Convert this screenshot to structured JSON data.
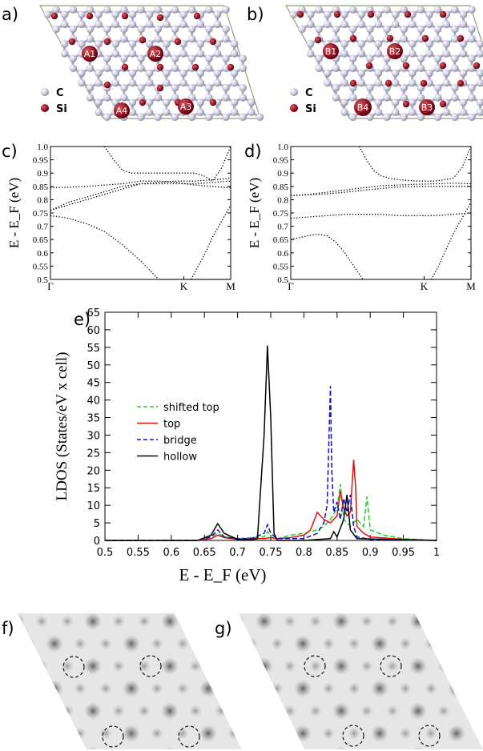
{
  "panels": {
    "a": {
      "letter": "a)",
      "labels": [
        "A1",
        "A2",
        "A4",
        "A3"
      ],
      "legend_c": "C",
      "legend_si": "Si"
    },
    "b": {
      "letter": "b)",
      "labels": [
        "B1",
        "B2",
        "B4",
        "B3"
      ],
      "legend_c": "C",
      "legend_si": "Si"
    },
    "c": {
      "letter": "c)"
    },
    "d": {
      "letter": "d)"
    },
    "e": {
      "letter": "e)"
    },
    "f": {
      "letter": "f)"
    },
    "g": {
      "letter": "g)"
    }
  },
  "chart_data": [
    {
      "type": "line",
      "panel": "c",
      "ylabel": "E - E_F (eV)",
      "ylim": [
        0.5,
        1.0
      ],
      "yticks": [
        "0.5",
        "0.55",
        "0.6",
        "0.65",
        "0.7",
        "0.75",
        "0.8",
        "0.85",
        "0.9",
        "0.95",
        "1.0"
      ],
      "xticks": [
        "Γ",
        "K",
        "M"
      ],
      "series": [
        {
          "x": [
            0,
            0.1,
            0.2,
            0.3,
            0.4,
            0.5,
            0.6,
            0.7,
            0.75,
            0.8,
            0.9,
            1.0
          ],
          "y": [
            0.74,
            0.73,
            0.71,
            0.68,
            0.63,
            0.57,
            0.5,
            0.5,
            0.5,
            0.5,
            0.5,
            0.5
          ]
        },
        {
          "x": [
            0,
            0.1,
            0.2,
            0.3,
            0.4,
            0.5,
            0.6,
            0.7,
            0.75,
            0.8,
            0.9,
            1.0
          ],
          "y": [
            0.76,
            0.78,
            0.8,
            0.82,
            0.84,
            0.86,
            0.86,
            0.86,
            0.86,
            0.86,
            0.865,
            0.87
          ]
        },
        {
          "x": [
            0,
            0.1,
            0.2,
            0.3,
            0.4,
            0.5,
            0.6,
            0.7,
            0.75,
            0.8,
            0.9,
            1.0
          ],
          "y": [
            0.76,
            0.79,
            0.81,
            0.83,
            0.85,
            0.86,
            0.865,
            0.87,
            0.87,
            0.87,
            0.875,
            0.88
          ]
        },
        {
          "x": [
            0,
            0.1,
            0.2,
            0.3,
            0.4,
            0.5,
            0.6,
            0.7,
            0.75,
            0.8,
            0.9,
            1.0
          ],
          "y": [
            0.845,
            0.847,
            0.85,
            0.855,
            0.86,
            0.87,
            0.87,
            0.865,
            0.86,
            0.855,
            0.85,
            0.845
          ]
        },
        {
          "x": [
            0.3,
            0.35,
            0.4,
            0.45,
            0.5,
            0.6,
            0.7,
            0.75,
            0.8,
            0.85,
            0.9,
            0.95,
            1.0
          ],
          "y": [
            1.0,
            0.95,
            0.91,
            0.9,
            0.9,
            0.9,
            0.9,
            0.9,
            0.9,
            0.89,
            0.87,
            0.92,
            1.0
          ]
        },
        {
          "x": [
            0.78,
            0.82,
            0.86,
            0.9,
            0.95,
            1.0
          ],
          "y": [
            0.5,
            0.55,
            0.6,
            0.66,
            0.72,
            0.78
          ]
        }
      ]
    },
    {
      "type": "line",
      "panel": "d",
      "ylabel": "E - E_F (eV)",
      "ylim": [
        0.5,
        1.0
      ],
      "yticks": [
        "0.5",
        "0.55",
        "0.6",
        "0.65",
        "0.7",
        "0.75",
        "0.8",
        "0.85",
        "0.9",
        "0.95",
        "1.0"
      ],
      "xticks": [
        "Γ",
        "K",
        "M"
      ],
      "series": [
        {
          "x": [
            0,
            0.1,
            0.15,
            0.2,
            0.25,
            0.3,
            0.35,
            0.4
          ],
          "y": [
            0.65,
            0.665,
            0.67,
            0.665,
            0.64,
            0.6,
            0.55,
            0.5
          ]
        },
        {
          "x": [
            0,
            0.1,
            0.2,
            0.3,
            0.4,
            0.5,
            0.6,
            0.7,
            0.8,
            0.9,
            1.0
          ],
          "y": [
            0.73,
            0.735,
            0.74,
            0.745,
            0.745,
            0.745,
            0.74,
            0.74,
            0.74,
            0.745,
            0.75
          ]
        },
        {
          "x": [
            0,
            0.1,
            0.2,
            0.3,
            0.4,
            0.5,
            0.6,
            0.7,
            0.8,
            0.9,
            1.0
          ],
          "y": [
            0.815,
            0.818,
            0.822,
            0.828,
            0.835,
            0.842,
            0.848,
            0.85,
            0.85,
            0.85,
            0.85
          ]
        },
        {
          "x": [
            0,
            0.1,
            0.2,
            0.3,
            0.4,
            0.5,
            0.6,
            0.7,
            0.8,
            0.9,
            1.0
          ],
          "y": [
            0.815,
            0.82,
            0.828,
            0.836,
            0.845,
            0.852,
            0.855,
            0.858,
            0.86,
            0.862,
            0.86
          ]
        },
        {
          "x": [
            0.38,
            0.42,
            0.46,
            0.5,
            0.55,
            0.6,
            0.7,
            0.8,
            0.9,
            0.95,
            1.0
          ],
          "y": [
            1.0,
            0.95,
            0.91,
            0.89,
            0.88,
            0.875,
            0.87,
            0.87,
            0.88,
            0.92,
            1.0
          ]
        },
        {
          "x": [
            0.78,
            0.82,
            0.86,
            0.9,
            0.95,
            1.0
          ],
          "y": [
            0.5,
            0.55,
            0.61,
            0.67,
            0.73,
            0.79
          ]
        }
      ]
    },
    {
      "type": "line",
      "panel": "e",
      "xlabel": "E - E_F  (eV)",
      "ylabel": "LDOS (States/eV x cell)",
      "xlim": [
        0.5,
        1.0
      ],
      "ylim": [
        0,
        65
      ],
      "xticks": [
        "0.5",
        "0.55",
        "0.6",
        "0.65",
        "0.7",
        "0.75",
        "0.8",
        "0.85",
        "0.9",
        "0.95",
        "1"
      ],
      "yticks": [
        "0",
        "5",
        "10",
        "15",
        "20",
        "25",
        "30",
        "35",
        "40",
        "45",
        "50",
        "55",
        "60",
        "65"
      ],
      "legend_placement": "left",
      "series": [
        {
          "name": "shifted top",
          "color": "#22cc22",
          "dash": "dashed",
          "x": [
            0.5,
            0.64,
            0.66,
            0.67,
            0.68,
            0.7,
            0.72,
            0.74,
            0.745,
            0.75,
            0.76,
            0.78,
            0.8,
            0.82,
            0.83,
            0.84,
            0.85,
            0.855,
            0.86,
            0.865,
            0.87,
            0.88,
            0.89,
            0.895,
            0.9,
            0.92,
            0.95,
            1.0
          ],
          "y": [
            0,
            0,
            1,
            2,
            1,
            0.5,
            0.8,
            1,
            2.5,
            1,
            0.5,
            1.5,
            2,
            3,
            4,
            6,
            9,
            16,
            6,
            5,
            4,
            6,
            4,
            12.5,
            3,
            1.5,
            0.5,
            0
          ]
        },
        {
          "name": "top",
          "color": "#dd1111",
          "dash": "solid",
          "x": [
            0.5,
            0.64,
            0.66,
            0.67,
            0.68,
            0.7,
            0.72,
            0.74,
            0.75,
            0.76,
            0.78,
            0.8,
            0.81,
            0.82,
            0.825,
            0.83,
            0.84,
            0.85,
            0.855,
            0.86,
            0.865,
            0.87,
            0.875,
            0.878,
            0.88,
            0.89,
            0.9,
            0.95,
            1.0
          ],
          "y": [
            0,
            0,
            0.5,
            1.5,
            0.8,
            0.3,
            0.5,
            0.5,
            0.8,
            0.5,
            0.8,
            1.5,
            3,
            8,
            7,
            6,
            5,
            7,
            14,
            9,
            7,
            8,
            23,
            15,
            4,
            2,
            1,
            0.3,
            0
          ]
        },
        {
          "name": "bridge",
          "color": "#1111cc",
          "dash": "dashed",
          "x": [
            0.5,
            0.64,
            0.66,
            0.67,
            0.68,
            0.7,
            0.72,
            0.74,
            0.745,
            0.75,
            0.76,
            0.8,
            0.82,
            0.83,
            0.835,
            0.84,
            0.842,
            0.845,
            0.85,
            0.855,
            0.86,
            0.865,
            0.87,
            0.875,
            0.88,
            0.9,
            1.0
          ],
          "y": [
            0,
            0,
            1,
            3,
            1,
            0.5,
            0.5,
            2,
            4.5,
            2,
            0.5,
            0.5,
            2,
            5,
            10,
            44,
            20,
            8,
            11,
            6,
            12,
            8,
            13,
            4,
            1,
            0.3,
            0
          ]
        },
        {
          "name": "hollow",
          "color": "#000000",
          "dash": "solid",
          "x": [
            0.5,
            0.64,
            0.66,
            0.67,
            0.68,
            0.7,
            0.72,
            0.73,
            0.74,
            0.745,
            0.75,
            0.755,
            0.76,
            0.8,
            0.84,
            0.845,
            0.85,
            0.86,
            0.865,
            0.87,
            0.88,
            1.0
          ],
          "y": [
            0,
            0,
            1.5,
            4.8,
            2,
            0.3,
            0.2,
            0.5,
            30,
            55.5,
            35,
            2,
            0,
            0,
            0.5,
            2.5,
            1,
            6,
            13,
            3,
            0.5,
            0
          ]
        }
      ]
    }
  ]
}
